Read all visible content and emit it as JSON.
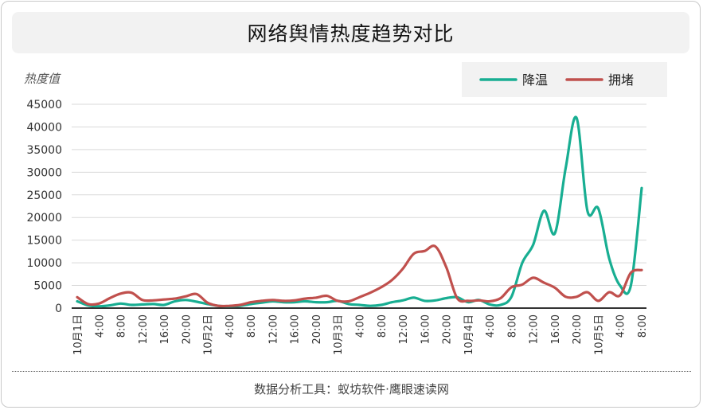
{
  "title": "网络舆情热度趋势对比",
  "footer": "数据分析工具：蚁坊软件·鹰眼速读网",
  "chart_data": {
    "type": "line",
    "ylabel": "热度值",
    "ylim": [
      0,
      45000
    ],
    "yticks": [
      "0",
      "5000",
      "10000",
      "15000",
      "20000",
      "25000",
      "30000",
      "35000",
      "40000",
      "45000"
    ],
    "x_ticks": [
      "10月1日",
      "4:00",
      "8:00",
      "12:00",
      "16:00",
      "20:00",
      "10月2日",
      "4:00",
      "8:00",
      "12:00",
      "16:00",
      "20:00",
      "10月3日",
      "4:00",
      "8:00",
      "12:00",
      "16:00",
      "20:00",
      "10月4日",
      "4:00",
      "8:00",
      "12:00",
      "16:00",
      "20:00",
      "10月5日",
      "4:00",
      "8:00"
    ],
    "x_hours_range": [
      0,
      104
    ],
    "grid": true,
    "legend_position": "top-right",
    "series": [
      {
        "name": "降温",
        "color": "#18ae92",
        "points": [
          [
            0,
            1500
          ],
          [
            2,
            600
          ],
          [
            4,
            400
          ],
          [
            6,
            600
          ],
          [
            8,
            1000
          ],
          [
            10,
            700
          ],
          [
            12,
            800
          ],
          [
            14,
            900
          ],
          [
            16,
            700
          ],
          [
            18,
            1500
          ],
          [
            20,
            1800
          ],
          [
            22,
            1400
          ],
          [
            24,
            900
          ],
          [
            26,
            500
          ],
          [
            28,
            400
          ],
          [
            30,
            500
          ],
          [
            32,
            900
          ],
          [
            34,
            1200
          ],
          [
            36,
            1500
          ],
          [
            38,
            1300
          ],
          [
            40,
            1300
          ],
          [
            42,
            1500
          ],
          [
            44,
            1300
          ],
          [
            46,
            1300
          ],
          [
            48,
            1600
          ],
          [
            50,
            900
          ],
          [
            52,
            700
          ],
          [
            54,
            500
          ],
          [
            56,
            700
          ],
          [
            58,
            1300
          ],
          [
            60,
            1700
          ],
          [
            62,
            2300
          ],
          [
            64,
            1600
          ],
          [
            66,
            1700
          ],
          [
            68,
            2200
          ],
          [
            70,
            2400
          ],
          [
            72,
            1300
          ],
          [
            74,
            1800
          ],
          [
            76,
            800
          ],
          [
            78,
            700
          ],
          [
            80,
            2500
          ],
          [
            82,
            10000
          ],
          [
            84,
            14000
          ],
          [
            86,
            21500
          ],
          [
            88,
            16500
          ],
          [
            90,
            31000
          ],
          [
            92,
            42000
          ],
          [
            94,
            21500
          ],
          [
            96,
            22000
          ],
          [
            98,
            11000
          ],
          [
            100,
            5000
          ],
          [
            102,
            5000
          ],
          [
            104,
            26500
          ]
        ]
      },
      {
        "name": "拥堵",
        "color": "#c0504d",
        "points": [
          [
            0,
            2400
          ],
          [
            2,
            900
          ],
          [
            4,
            1000
          ],
          [
            6,
            2200
          ],
          [
            8,
            3200
          ],
          [
            10,
            3400
          ],
          [
            12,
            1800
          ],
          [
            14,
            1700
          ],
          [
            16,
            1900
          ],
          [
            18,
            2100
          ],
          [
            20,
            2600
          ],
          [
            22,
            3100
          ],
          [
            24,
            1200
          ],
          [
            26,
            500
          ],
          [
            28,
            500
          ],
          [
            30,
            700
          ],
          [
            32,
            1300
          ],
          [
            34,
            1600
          ],
          [
            36,
            1800
          ],
          [
            38,
            1600
          ],
          [
            40,
            1700
          ],
          [
            42,
            2100
          ],
          [
            44,
            2300
          ],
          [
            46,
            2700
          ],
          [
            48,
            1600
          ],
          [
            50,
            1500
          ],
          [
            52,
            2400
          ],
          [
            54,
            3400
          ],
          [
            56,
            4600
          ],
          [
            58,
            6200
          ],
          [
            60,
            8700
          ],
          [
            62,
            12000
          ],
          [
            64,
            12600
          ],
          [
            66,
            13600
          ],
          [
            68,
            9000
          ],
          [
            70,
            2200
          ],
          [
            72,
            1600
          ],
          [
            74,
            1700
          ],
          [
            76,
            1500
          ],
          [
            78,
            2200
          ],
          [
            80,
            4600
          ],
          [
            82,
            5200
          ],
          [
            84,
            6700
          ],
          [
            86,
            5600
          ],
          [
            88,
            4500
          ],
          [
            90,
            2500
          ],
          [
            92,
            2500
          ],
          [
            94,
            3500
          ],
          [
            96,
            1600
          ],
          [
            98,
            3500
          ],
          [
            100,
            2800
          ],
          [
            102,
            7800
          ],
          [
            104,
            8400
          ]
        ]
      }
    ]
  }
}
